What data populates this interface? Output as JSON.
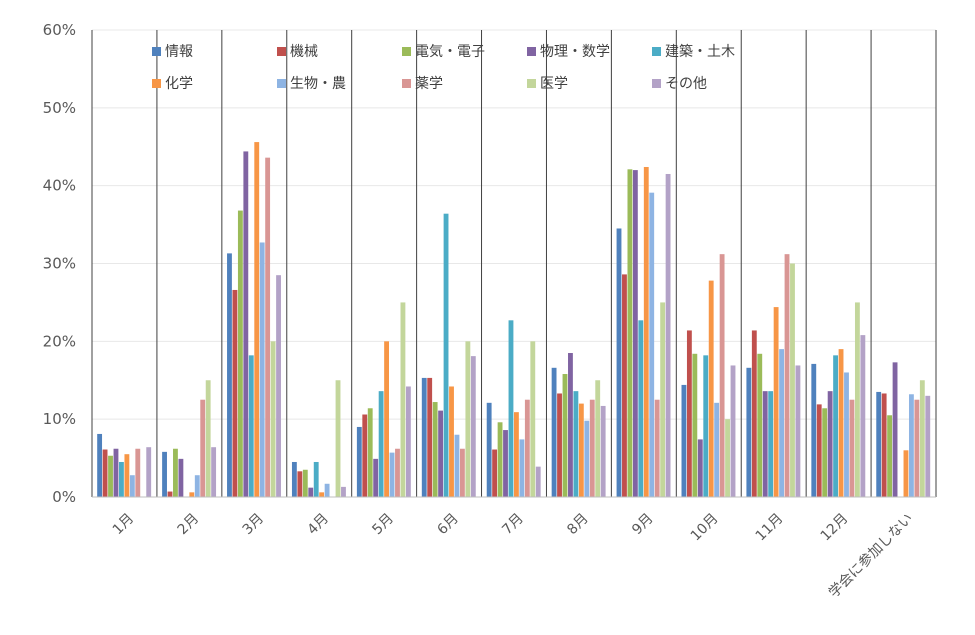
{
  "chart_data": {
    "type": "bar",
    "title": "",
    "xlabel": "",
    "ylabel": "",
    "ylim": [
      0,
      60
    ],
    "y_ticks": [
      "0%",
      "10%",
      "20%",
      "30%",
      "40%",
      "50%",
      "60%"
    ],
    "grid": true,
    "legend_position": "top-left inside",
    "categories": [
      "1月",
      "2月",
      "3月",
      "4月",
      "5月",
      "6月",
      "7月",
      "8月",
      "9月",
      "10月",
      "11月",
      "12月",
      "学会に参加しない"
    ],
    "series": [
      {
        "name": "情報",
        "color": "#4F81BD",
        "values": [
          8.1,
          5.8,
          31.3,
          4.5,
          9.0,
          15.3,
          12.1,
          16.6,
          34.5,
          14.4,
          16.6,
          17.1,
          13.5
        ]
      },
      {
        "name": "機械",
        "color": "#C0504D",
        "values": [
          6.1,
          0.7,
          26.6,
          3.3,
          10.6,
          15.3,
          6.1,
          13.3,
          28.6,
          21.4,
          21.4,
          11.9,
          13.3
        ]
      },
      {
        "name": "電気・電子",
        "color": "#9BBB59",
        "values": [
          5.3,
          6.2,
          36.8,
          3.5,
          11.4,
          12.2,
          9.6,
          15.8,
          42.1,
          18.4,
          18.4,
          11.4,
          10.5
        ]
      },
      {
        "name": "物理・数学",
        "color": "#8064A2",
        "values": [
          6.2,
          4.9,
          44.4,
          1.2,
          4.9,
          11.1,
          8.6,
          18.5,
          42.0,
          7.4,
          13.6,
          13.6,
          17.3
        ]
      },
      {
        "name": "建築・土木",
        "color": "#4BACC6",
        "values": [
          4.5,
          0,
          18.2,
          4.5,
          13.6,
          36.4,
          22.7,
          13.6,
          22.7,
          18.2,
          13.6,
          18.2,
          0
        ]
      },
      {
        "name": "化学",
        "color": "#F79646",
        "values": [
          5.5,
          0.6,
          45.6,
          0.6,
          20.0,
          14.2,
          10.9,
          12.0,
          42.4,
          27.8,
          24.4,
          19.0,
          6.0
        ]
      },
      {
        "name": "生物・農",
        "color": "#8EB4E3",
        "values": [
          2.8,
          2.8,
          32.7,
          1.7,
          5.7,
          8.0,
          7.4,
          9.8,
          39.1,
          12.1,
          19.0,
          16.0,
          13.2
        ]
      },
      {
        "name": "薬学",
        "color": "#D99694",
        "values": [
          6.2,
          12.5,
          43.6,
          0,
          6.2,
          6.2,
          12.5,
          12.5,
          12.5,
          31.2,
          31.2,
          12.5,
          12.5
        ]
      },
      {
        "name": "医学",
        "color": "#C3D69B",
        "values": [
          0,
          15.0,
          20.0,
          15.0,
          25.0,
          20.0,
          20.0,
          15.0,
          25.0,
          10.0,
          30.0,
          25.0,
          15.0
        ]
      },
      {
        "name": "その他",
        "color": "#B3A2C7",
        "values": [
          6.4,
          6.4,
          28.5,
          1.3,
          14.2,
          18.1,
          3.9,
          11.7,
          41.5,
          16.9,
          16.9,
          20.8,
          13.0
        ]
      }
    ]
  }
}
